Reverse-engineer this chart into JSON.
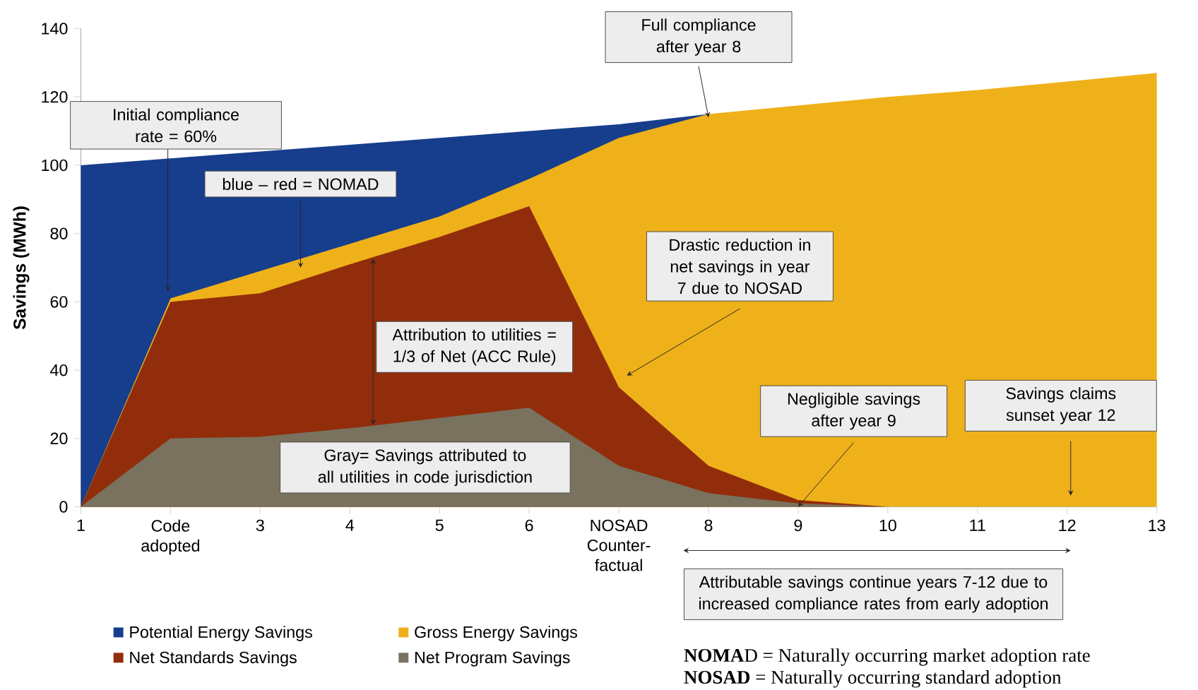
{
  "chart_data": {
    "type": "area",
    "ylabel": "Savings (MWh)",
    "categories": [
      "1",
      "Code adopted",
      "3",
      "4",
      "5",
      "6",
      "NOSAD Counter-factual",
      "8",
      "9",
      "10",
      "11",
      "12",
      "13"
    ],
    "series": [
      {
        "name": "Potential Energy Savings",
        "color": "#173e8c",
        "values": [
          100,
          102,
          104,
          106,
          108,
          110,
          112,
          115,
          null,
          null,
          null,
          null,
          null
        ]
      },
      {
        "name": "Gross Energy Savings",
        "color": "#efb11a",
        "values": [
          0,
          61,
          69,
          77,
          85,
          96,
          108,
          115,
          117.5,
          120,
          122,
          124.5,
          127
        ]
      },
      {
        "name": "Net Standards Savings",
        "color": "#922d0b",
        "values": [
          0,
          60,
          62.5,
          71,
          79,
          88,
          35,
          12,
          2,
          0,
          0,
          0,
          0
        ]
      },
      {
        "name": "Net Program Savings",
        "color": "#78725e",
        "values": [
          0,
          20,
          20.5,
          23,
          26,
          29,
          12,
          4,
          1,
          0,
          0,
          0,
          0
        ]
      }
    ],
    "ylim": [
      0,
      140
    ],
    "yticks": [
      0,
      20,
      40,
      60,
      80,
      100,
      120,
      140
    ],
    "legend": "bottom",
    "annotations": [
      "Initial compliance rate = 60%",
      "blue – red = NOMAD",
      {
        "text": "Full compliance after year 8",
        "x": "8",
        "y": 114
      },
      "Drastic reduction in net savings in year 7 due to NOSAD",
      "Attribution to utilities = 1/3 of Net (ACC Rule)",
      "Gray= Savings attributed to all utilities in code jurisdiction",
      {
        "text": "Negligible savings after year 9",
        "x": "9",
        "y": 0
      },
      "Savings claims sunset year 12",
      "Attributable savings continue years 7-12 due to increased compliance rates from early adoption",
      "**NOMA**D = Naturally occurring market adoption rate",
      "**NOSAD** = Naturally occurring standard adoption"
    ]
  }
}
